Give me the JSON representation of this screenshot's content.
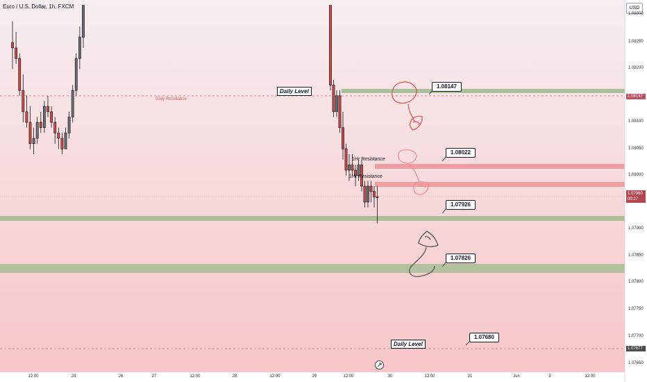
{
  "header": {
    "title": "Euro / U.S. Dollar, 1h, FXCM",
    "currency_button": "USD"
  },
  "colors": {
    "bull_candle": "#6a6f78",
    "bear_candle": "#c84a4a",
    "candle_edge": "#111111",
    "gradient_top": "#f7eef0",
    "gradient_bottom": "#f7c6c8",
    "red_zone": "#e96d72",
    "green_zone": "#9fb98d",
    "daily_resistance_line": "#f05a5a",
    "level_dash_grey": "#b9a3a5",
    "current_price_tag": "#b2474f",
    "price_tag_dark": "#4b4b4b",
    "price_tag_red": "#c05060"
  },
  "annotations": {
    "daily_resistance_label": "Daily Resistance",
    "daily_level_top": "Daily Level",
    "daily_level_bottom": "Daily Level",
    "hr_resistance_1": "1Hr Resistance",
    "hr_resistance_2": "1Hr Resistance",
    "callouts": [
      "1.08147",
      "1.08022",
      "1.07926",
      "1.07826",
      "1.07680"
    ]
  },
  "price_axis": {
    "labels": [
      "1.08300",
      "1.08250",
      "1.08200",
      "1.08100",
      "1.08050",
      "1.08000",
      "1.07900",
      "1.07850",
      "1.07800",
      "1.07750",
      "1.07700",
      "1.07650"
    ],
    "current_price": "1.07960",
    "countdown": "00:27",
    "tag_resistance": "1.08147",
    "tag_level": "1.07677"
  },
  "time_axis": {
    "labels": [
      "12:00",
      "24",
      "26",
      "27",
      "12:00",
      "28",
      "12:00",
      "29",
      "12:00",
      "30",
      "12:00",
      "31",
      "Jun",
      "3",
      "12:00"
    ]
  },
  "icons": {
    "scroll_to_latest": "scroll-arrow-icon",
    "red_drawing": "red-freehand-icon",
    "pink_drawing": "pink-freehand-icon",
    "grey_drawing": "grey-freehand-icon"
  },
  "chart_data": {
    "type": "candlestick",
    "symbol": "EURUSD",
    "interval": "1h",
    "ylim": [
      1.0763,
      1.0833
    ],
    "zones": [
      {
        "kind": "green",
        "from": 1.0814,
        "to": 1.0815
      },
      {
        "kind": "red",
        "from": 1.08013,
        "to": 1.08022
      },
      {
        "kind": "red",
        "from": 1.0798,
        "to": 1.0799
      },
      {
        "kind": "green",
        "from": 1.07916,
        "to": 1.07926
      },
      {
        "kind": "green",
        "from": 1.07811,
        "to": 1.07826
      }
    ],
    "lines": [
      {
        "kind": "daily_resistance",
        "price": 1.08147
      },
      {
        "kind": "current",
        "price": 1.0796
      },
      {
        "kind": "daily_level",
        "price": 1.07677
      }
    ],
    "candles": [
      {
        "o": 1.0825,
        "h": 1.0829,
        "l": 1.082,
        "c": 1.0824
      },
      {
        "o": 1.0824,
        "h": 1.0827,
        "l": 1.0821,
        "c": 1.0822
      },
      {
        "o": 1.0822,
        "h": 1.0823,
        "l": 1.0815,
        "c": 1.0816
      },
      {
        "o": 1.0816,
        "h": 1.0819,
        "l": 1.081,
        "c": 1.0812
      },
      {
        "o": 1.0812,
        "h": 1.0815,
        "l": 1.0809,
        "c": 1.081
      },
      {
        "o": 1.081,
        "h": 1.0813,
        "l": 1.0805,
        "c": 1.0806
      },
      {
        "o": 1.0806,
        "h": 1.0809,
        "l": 1.0804,
        "c": 1.0807
      },
      {
        "o": 1.0807,
        "h": 1.0811,
        "l": 1.0806,
        "c": 1.081
      },
      {
        "o": 1.081,
        "h": 1.0812,
        "l": 1.0808,
        "c": 1.0809
      },
      {
        "o": 1.0809,
        "h": 1.0814,
        "l": 1.0808,
        "c": 1.0813
      },
      {
        "o": 1.0813,
        "h": 1.0815,
        "l": 1.0811,
        "c": 1.0812
      },
      {
        "o": 1.0812,
        "h": 1.0813,
        "l": 1.0809,
        "c": 1.081
      },
      {
        "o": 1.081,
        "h": 1.0811,
        "l": 1.0806,
        "c": 1.0808
      },
      {
        "o": 1.0808,
        "h": 1.0809,
        "l": 1.0805,
        "c": 1.0807
      },
      {
        "o": 1.0807,
        "h": 1.0808,
        "l": 1.0804,
        "c": 1.0805
      },
      {
        "o": 1.0805,
        "h": 1.0809,
        "l": 1.0805,
        "c": 1.0808
      },
      {
        "o": 1.0808,
        "h": 1.0812,
        "l": 1.0807,
        "c": 1.0811
      },
      {
        "o": 1.0811,
        "h": 1.0817,
        "l": 1.081,
        "c": 1.0816
      },
      {
        "o": 1.0816,
        "h": 1.0823,
        "l": 1.0815,
        "c": 1.0822
      },
      {
        "o": 1.0822,
        "h": 1.0828,
        "l": 1.082,
        "c": 1.0826
      },
      {
        "o": 1.0826,
        "h": 1.0832,
        "l": 1.0824,
        "c": 1.0832
      },
      {
        "o": 1.0832,
        "h": 1.0832,
        "l": 1.0816,
        "c": 1.0817
      },
      {
        "o": 1.0817,
        "h": 1.0818,
        "l": 1.0811,
        "c": 1.0812
      },
      {
        "o": 1.0812,
        "h": 1.0816,
        "l": 1.0811,
        "c": 1.0815
      },
      {
        "o": 1.0815,
        "h": 1.0816,
        "l": 1.0808,
        "c": 1.0809
      },
      {
        "o": 1.0809,
        "h": 1.0812,
        "l": 1.0803,
        "c": 1.0805
      },
      {
        "o": 1.0805,
        "h": 1.0806,
        "l": 1.08,
        "c": 1.0801
      },
      {
        "o": 1.0801,
        "h": 1.0804,
        "l": 1.0799,
        "c": 1.0802
      },
      {
        "o": 1.0802,
        "h": 1.0804,
        "l": 1.08,
        "c": 1.0801
      },
      {
        "o": 1.0801,
        "h": 1.0802,
        "l": 1.0798,
        "c": 1.08
      },
      {
        "o": 1.08,
        "h": 1.0803,
        "l": 1.0799,
        "c": 1.0802
      },
      {
        "o": 1.0802,
        "h": 1.0803,
        "l": 1.0797,
        "c": 1.0798
      },
      {
        "o": 1.0798,
        "h": 1.0799,
        "l": 1.0794,
        "c": 1.0795
      },
      {
        "o": 1.0795,
        "h": 1.0799,
        "l": 1.0794,
        "c": 1.0798
      },
      {
        "o": 1.0798,
        "h": 1.0799,
        "l": 1.0795,
        "c": 1.0797
      },
      {
        "o": 1.0797,
        "h": 1.0798,
        "l": 1.0794,
        "c": 1.0796
      },
      {
        "o": 1.0796,
        "h": 1.0798,
        "l": 1.0791,
        "c": 1.0796
      }
    ]
  }
}
